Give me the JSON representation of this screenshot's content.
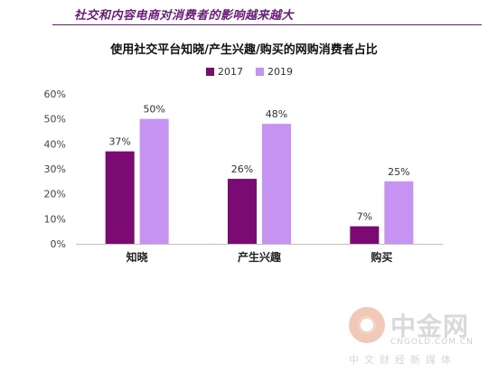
{
  "header": {
    "title": "社交和内容电商对消费者的影响越来越大"
  },
  "watermark": {
    "name": "中金网",
    "domain": "CNGOLD.COM.CN",
    "tagline": "中文财经新媒体"
  },
  "colors": {
    "accent": "#6a1b7a",
    "series_2017": "#7b0a73",
    "series_2019": "#c693f2"
  },
  "chart_data": {
    "type": "bar",
    "title": "使用社交平台知晓/产生兴趣/购买的网购消费者占比",
    "categories": [
      "知晓",
      "产生兴趣",
      "购买"
    ],
    "series": [
      {
        "name": "2017",
        "values": [
          37,
          26,
          7
        ],
        "labels": [
          "37%",
          "26%",
          "7%"
        ]
      },
      {
        "name": "2019",
        "values": [
          50,
          48,
          25
        ],
        "labels": [
          "50%",
          "48%",
          "25%"
        ]
      }
    ],
    "ylim": [
      0,
      60
    ],
    "yticks": [
      "0%",
      "10%",
      "20%",
      "30%",
      "40%",
      "50%",
      "60%"
    ],
    "xlabel": "",
    "ylabel": "",
    "grid": false,
    "legend": "top-center"
  }
}
